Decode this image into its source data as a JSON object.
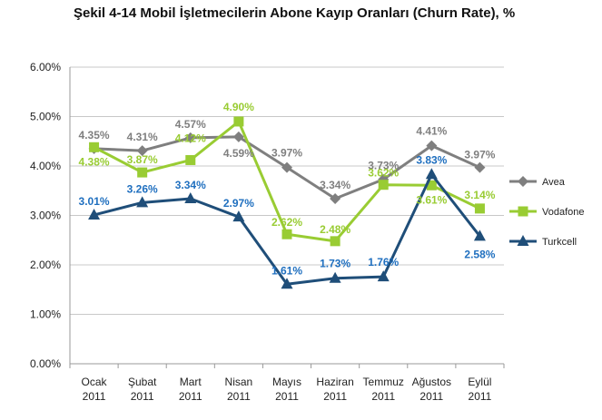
{
  "chart_data": {
    "type": "line",
    "title": "Şekil 4-14 Mobil İşletmecilerin Abone Kayıp Oranları (Churn Rate), %",
    "categories": [
      [
        "Ocak",
        "2011"
      ],
      [
        "Şubat",
        "2011"
      ],
      [
        "Mart",
        "2011"
      ],
      [
        "Nisan",
        "2011"
      ],
      [
        "Mayıs",
        "2011"
      ],
      [
        "Haziran",
        "2011"
      ],
      [
        "Temmuz",
        "2011"
      ],
      [
        "Ağustos",
        "2011"
      ],
      [
        "Eylül",
        "2011"
      ]
    ],
    "ylim": [
      0,
      6
    ],
    "yticks": [
      "0.00%",
      "1.00%",
      "2.00%",
      "3.00%",
      "4.00%",
      "5.00%",
      "6.00%"
    ],
    "legend_position": "right",
    "series": [
      {
        "name": "Avea",
        "color": "#7f7f7f",
        "marker": "diamond",
        "values": [
          4.35,
          4.31,
          4.57,
          4.59,
          3.97,
          3.34,
          3.73,
          4.41,
          3.97
        ],
        "labels": [
          "4.35%",
          "4.31%",
          "4.57%",
          "4.59%",
          "3.97%",
          "3.34%",
          "3.73%",
          "4.41%",
          "3.97%"
        ]
      },
      {
        "name": "Vodafone",
        "color": "#99cc33",
        "marker": "square",
        "values": [
          4.38,
          3.87,
          4.12,
          4.9,
          2.62,
          2.48,
          3.62,
          3.61,
          3.14
        ],
        "labels": [
          "4.38%",
          "3.87%",
          "4.12%",
          "4.90%",
          "2.62%",
          "2.48%",
          "3.62%",
          "3.61%",
          "3.14%"
        ]
      },
      {
        "name": "Turkcell",
        "color": "#1f4e79",
        "label_color": "#1f6fbf",
        "marker": "triangle",
        "values": [
          3.01,
          3.26,
          3.34,
          2.97,
          1.61,
          1.73,
          1.76,
          3.83,
          2.58
        ],
        "labels": [
          "3.01%",
          "3.26%",
          "3.34%",
          "2.97%",
          "1.61%",
          "1.73%",
          "1.76%",
          "3.83%",
          "2.58%"
        ]
      }
    ]
  }
}
